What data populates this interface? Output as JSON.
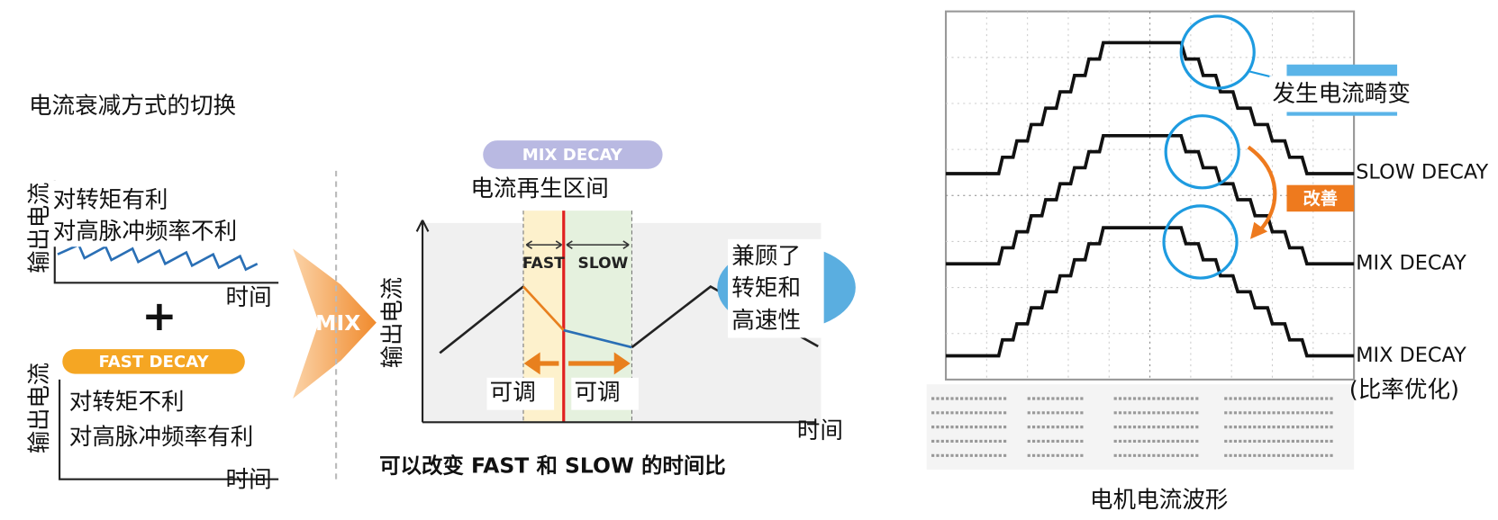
{
  "left": {
    "title": "电流衰减方式的切换",
    "slow_panel": {
      "y_label": "输出电流",
      "line1": "对转矩有利",
      "line2": "对高脉冲频率不利",
      "x_label": "时间"
    },
    "plus": "+",
    "fast_panel": {
      "badge": "FAST DECAY",
      "y_label": "输出电流",
      "line1": "对转矩不利",
      "line2": "对高脉冲频率有利",
      "x_label": "时间"
    },
    "arrow": "MIX"
  },
  "middle": {
    "badge": "MIX DECAY",
    "subtitle": "电流再生区间",
    "fast": "FAST",
    "slow": "SLOW",
    "y_label": "输出电流",
    "adjust_left": "可调",
    "adjust_right": "可调",
    "x_label": "时间",
    "bubble": [
      "兼顾了",
      "转矩和",
      "高速性"
    ],
    "caption": "可以改变 FAST 和 SLOW 的时间比"
  },
  "right": {
    "callout": "发生电流畸变",
    "improve": "改善",
    "labels": [
      "SLOW DECAY",
      "MIX DECAY",
      "MIX DECAY",
      "(比率优化)"
    ],
    "caption": "电机电流波形"
  }
}
